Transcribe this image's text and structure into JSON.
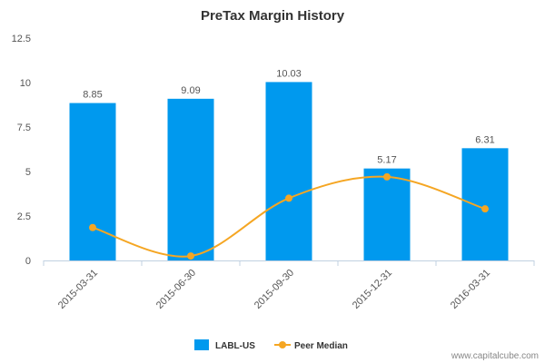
{
  "chart_data": {
    "type": "bar",
    "title": "PreTax Margin History",
    "categories": [
      "2015-03-31",
      "2015-06-30",
      "2015-09-30",
      "2015-12-31",
      "2016-03-31"
    ],
    "series": [
      {
        "name": "LABL-US",
        "type": "bar",
        "values": [
          8.85,
          9.09,
          10.03,
          5.17,
          6.31
        ],
        "labels": [
          "8.85",
          "9.09",
          "10.03",
          "5.17",
          "6.31"
        ],
        "color": "#0099ee"
      },
      {
        "name": "Peer Median",
        "type": "line",
        "values": [
          1.85,
          0.25,
          3.5,
          4.7,
          2.9
        ],
        "color": "#f5a623"
      }
    ],
    "ylim": [
      0,
      12.5
    ],
    "yticks": [
      0,
      2.5,
      5,
      7.5,
      10,
      12.5
    ],
    "ytick_labels": [
      "0",
      "2.5",
      "5",
      "7.5",
      "10",
      "12.5"
    ],
    "xlabel": "",
    "ylabel": "",
    "grid": false,
    "legend_position": "bottom-center"
  },
  "credit": "www.capitalcube.com"
}
